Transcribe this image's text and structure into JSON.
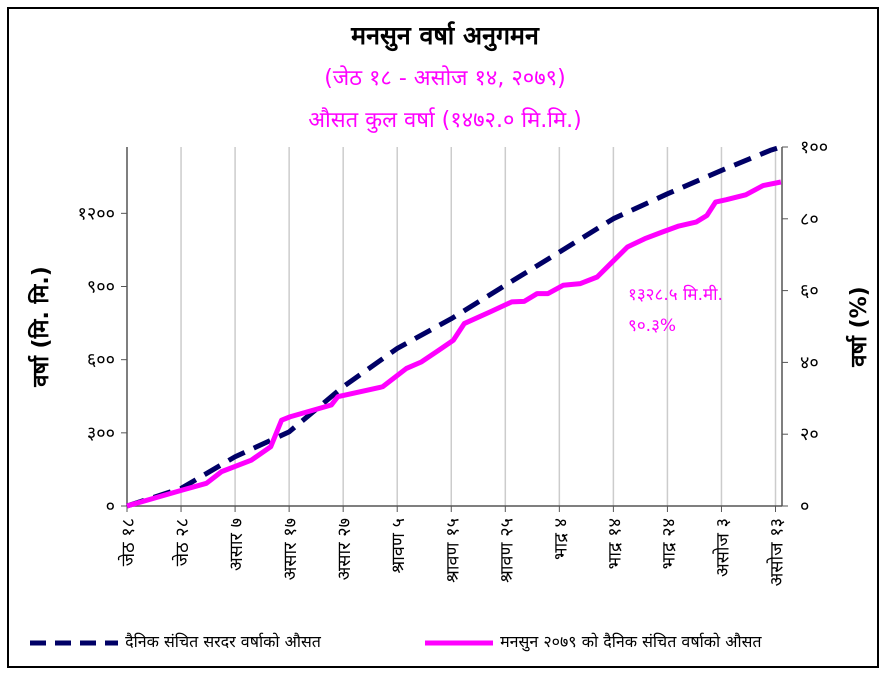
{
  "chart_data": {
    "type": "line",
    "title": "मनसुन वर्षा अनुगमन",
    "subtitle": [
      "(जेठ १८ - असोज १४, २०७९)",
      "औसत  कुल वर्षा (१४७२.० मि.मि.)"
    ],
    "ylabel": "वर्षा (मि. मि.)",
    "ylabel_right": "वर्षा (%)",
    "xlim": [
      0,
      121.2
    ],
    "ylim": [
      0,
      1472
    ],
    "ylim_right": [
      0,
      100
    ],
    "grid": "vertical",
    "x_ticks": [
      0,
      10,
      20,
      30,
      40,
      50,
      60,
      70,
      80,
      90,
      100,
      110,
      120
    ],
    "x_tick_labels": [
      "जेठ १८",
      "जेठ २८",
      "असार ७",
      "असार १७",
      "असार २७",
      "श्रावण ५",
      "श्रावण १५",
      "श्रावण २५",
      "भाद्र ४",
      "भाद्र १४",
      "भाद्र २४",
      "असोज ३",
      "असोज १३"
    ],
    "y_ticks": [
      0,
      300,
      600,
      900,
      1200
    ],
    "y_tick_labels": [
      "०",
      "३००",
      "६००",
      "९००",
      "१२००"
    ],
    "y_right_ticks": [
      0,
      20,
      40,
      60,
      80,
      100
    ],
    "y_right_tick_labels": [
      "०",
      "२०",
      "४०",
      "६०",
      "८०",
      "१००"
    ],
    "legend_position": "bottom",
    "series": [
      {
        "name": "दैनिक संचित सरदर वर्षाको औसत",
        "color": "#000066",
        "style": "dashed",
        "x": [
          0,
          10,
          20,
          30,
          40,
          50,
          60,
          70,
          80,
          90,
          100,
          110,
          119,
          121
        ],
        "y": [
          0,
          72,
          202,
          304,
          489,
          646,
          768,
          905,
          1041,
          1178,
          1280,
          1376,
          1458,
          1472
        ]
      },
      {
        "name": "मनसुन २०७९ को दैनिक संचित वर्षाको औसत",
        "color": "#ff00ff",
        "style": "solid",
        "x": [
          0,
          10.2,
          14.7,
          17.5,
          23,
          26.6,
          28.6,
          30.2,
          37.8,
          39,
          47.3,
          51.7,
          54.5,
          57.7,
          60.4,
          62.4,
          67.2,
          71.2,
          73.5,
          75.9,
          77.9,
          80.7,
          83.9,
          87,
          89.5,
          92.6,
          95.8,
          99,
          102.1,
          105.3,
          107.3,
          108.9,
          110.9,
          114.5,
          117.7,
          121
        ],
        "y": [
          0,
          65,
          93,
          141,
          188,
          243,
          352,
          366,
          414,
          448,
          489,
          564,
          591,
          639,
          680,
          748,
          796,
          837,
          839,
          871,
          871,
          905,
          912,
          939,
          994,
          1062,
          1096,
          1123,
          1148,
          1164,
          1191,
          1246,
          1256,
          1276,
          1314,
          1328.5
        ]
      }
    ],
    "annotation": [
      "१३२८.५ मि.मी.",
      "९०.३%"
    ]
  }
}
